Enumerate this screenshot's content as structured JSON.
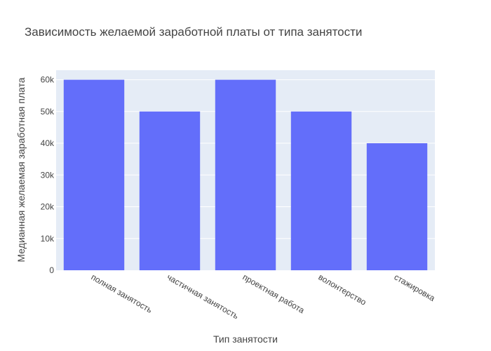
{
  "chart_data": {
    "type": "bar",
    "title": "Зависимость желаемой заработной платы от типа занятости",
    "xlabel": "Тип занятости",
    "ylabel": "Медианная желаемая заработная плата",
    "categories": [
      "полная занятость",
      "частичная занятость",
      "проектная работа",
      "волонтерство",
      "стажировка"
    ],
    "values": [
      60000,
      50000,
      60000,
      50000,
      40000
    ],
    "ylim": [
      0,
      63000
    ],
    "yticks": [
      0,
      10000,
      20000,
      30000,
      40000,
      50000,
      60000
    ],
    "ytick_labels": [
      "0",
      "10k",
      "20k",
      "30k",
      "40k",
      "50k",
      "60k"
    ],
    "grid": true,
    "colors": {
      "bar": "#636efa",
      "plot_bg": "#e5ecf6",
      "grid": "#ffffff"
    }
  }
}
